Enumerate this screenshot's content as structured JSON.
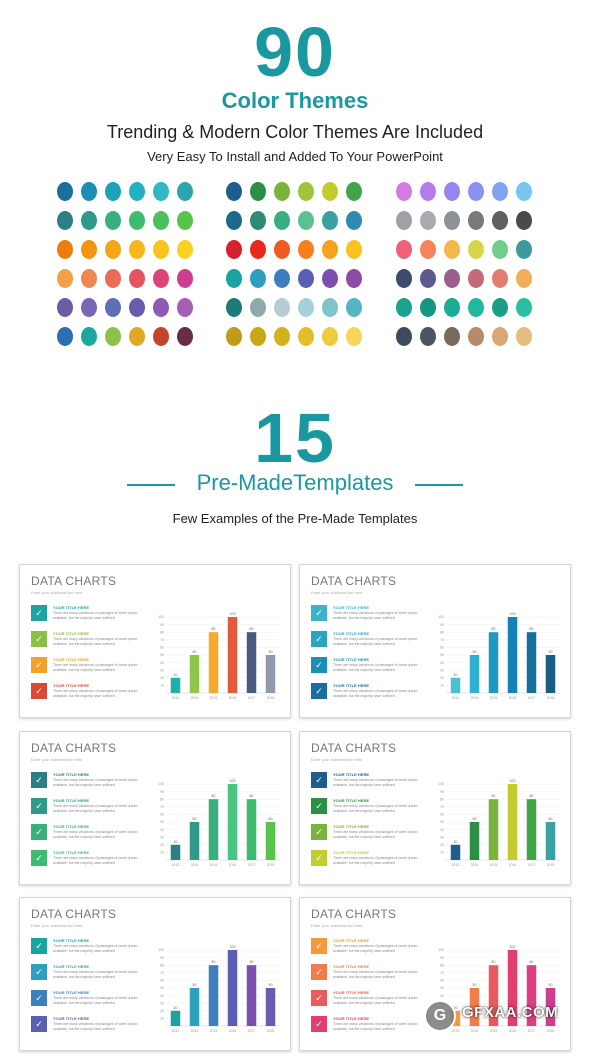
{
  "header": {
    "count": "90",
    "title": "Color Themes",
    "subtitle": "Trending & Modern Color Themes Are Included",
    "tagline": "Very Easy To Install and Added To Your PowerPoint"
  },
  "palettes": [
    [
      [
        "#1b6f9e",
        "#1a8fb4",
        "#1aa2b8",
        "#23b1bf",
        "#2fb8c3",
        "#2aa7ad"
      ],
      [
        "#2c7f84",
        "#2f9a8a",
        "#37b07e",
        "#3dbb6e",
        "#4ac15d",
        "#58c44a"
      ],
      [
        "#f07d0b",
        "#f39412",
        "#f5a618",
        "#f7b61c",
        "#f9c41e",
        "#fbd223"
      ],
      [
        "#f3a046",
        "#f08753",
        "#ec6c5a",
        "#e45463",
        "#dd4477",
        "#cc3f8f"
      ],
      [
        "#6b5ca5",
        "#7b66b5",
        "#5d6fb5",
        "#6a5ab0",
        "#8e5ab8",
        "#a65fb5"
      ],
      [
        "#2a6fb0",
        "#1aa99a",
        "#8ec14a",
        "#e1a827",
        "#c2452b",
        "#6a2d47"
      ]
    ],
    [
      [
        "#1d5e8e",
        "#2d8f45",
        "#7ab33c",
        "#a2c23a",
        "#c2cc2f",
        "#41a447"
      ],
      [
        "#1b6a8c",
        "#2e8c76",
        "#36b07e",
        "#5cc091",
        "#3aa0a2",
        "#2d8bb1"
      ],
      [
        "#d7202f",
        "#e8291d",
        "#f25b1f",
        "#f77f1d",
        "#f9a01c",
        "#fbc21f"
      ],
      [
        "#1aa3a0",
        "#2f9fbf",
        "#3d7ebd",
        "#5a5fb5",
        "#7a4fb0",
        "#8e4aa8"
      ],
      [
        "#1f7a78",
        "#8ea9ab",
        "#b4cdd2",
        "#a7d1d8",
        "#7ec4c9",
        "#55b5c3"
      ],
      [
        "#c09a18",
        "#c8a717",
        "#d2b21d",
        "#e1be2a",
        "#eecb3c",
        "#f6d65a"
      ]
    ],
    [
      [
        "#d27be3",
        "#b57be8",
        "#9a84ee",
        "#8a91f0",
        "#7ea4f2",
        "#77c5f2"
      ],
      [
        "#9ea2a8",
        "#a8acb1",
        "#8d9297",
        "#77797d",
        "#5f6064",
        "#48494c"
      ],
      [
        "#f0607a",
        "#f5845d",
        "#f5b64a",
        "#d7d64a",
        "#6fcf8a",
        "#3d9a9a"
      ],
      [
        "#3d4a6b",
        "#5d5a8e",
        "#9a5f8a",
        "#c36a7b",
        "#e07f6f",
        "#f0b05a"
      ],
      [
        "#1aa38e",
        "#17967f",
        "#19ad93",
        "#20b89e",
        "#1a9e86",
        "#2bbfa2"
      ],
      [
        "#3e4b5d",
        "#4a5463",
        "#7a6a5e",
        "#b98a6a",
        "#d9a677",
        "#e4bd80"
      ]
    ]
  ],
  "templates": {
    "count": "15",
    "title": "Pre-MadeTemplates",
    "subtitle": "Few Examples of the Pre-Made Templates"
  },
  "card_common": {
    "title": "DATA CHARTS",
    "sub": "Enter your subhead line here",
    "item_title": "YOUR TITLE HERE",
    "item_text": "There are many variations of passages of lorem ipsum available, but the majority have suffered",
    "years": [
      "2013",
      "2014",
      "2015",
      "2016",
      "2017",
      "2018"
    ]
  },
  "chart_data": {
    "type": "bar",
    "categories": [
      "2013",
      "2014",
      "2015",
      "2016",
      "2017",
      "2018"
    ],
    "values": [
      20,
      50,
      80,
      100,
      80,
      50
    ],
    "ylim": [
      0,
      100
    ],
    "yticks": [
      10,
      20,
      30,
      40,
      50,
      60,
      70,
      80,
      90,
      100
    ]
  },
  "cards": [
    {
      "icon_colors": [
        "#1fa2a0",
        "#8bbf46",
        "#f3a12b",
        "#d84a35"
      ],
      "title_colors": [
        "#1fa2a0",
        "#8bbf46",
        "#f3a12b",
        "#d84a35"
      ],
      "bar_colors": [
        "#1fb0a8",
        "#8fc54c",
        "#f5a92d",
        "#e55a3c",
        "#4a5a7b",
        "#8f9aaa"
      ]
    },
    {
      "icon_colors": [
        "#3bb3c9",
        "#2aa3c5",
        "#1b8fb6",
        "#1b6f9e"
      ],
      "title_colors": [
        "#3bb3c9",
        "#2aa3c5",
        "#1b8fb6",
        "#1b6f9e"
      ],
      "bar_colors": [
        "#4cc0d1",
        "#32aed0",
        "#1d98c2",
        "#1382b6",
        "#166f9d",
        "#1b5c82"
      ]
    },
    {
      "icon_colors": [
        "#2c7f84",
        "#2f9a8a",
        "#37b07e",
        "#3dbb6e"
      ],
      "title_colors": [
        "#2c7f84",
        "#2f9a8a",
        "#37b07e",
        "#3dbb6e"
      ],
      "bar_colors": [
        "#2c7f84",
        "#2f9a8a",
        "#37b07e",
        "#4ac581",
        "#3dbb6e",
        "#58c44a"
      ]
    },
    {
      "icon_colors": [
        "#1d5e8e",
        "#2d8f45",
        "#7ab33c",
        "#c2cc2f"
      ],
      "title_colors": [
        "#1d5e8e",
        "#2d8f45",
        "#7ab33c",
        "#c2cc2f"
      ],
      "bar_colors": [
        "#1d5e8e",
        "#2d8f45",
        "#7ab33c",
        "#c2cc2f",
        "#41a447",
        "#3aa0a2"
      ]
    },
    {
      "icon_colors": [
        "#1aa3a0",
        "#2f9fbf",
        "#3d7ebd",
        "#5a5fb5"
      ],
      "title_colors": [
        "#1aa3a0",
        "#2f9fbf",
        "#3d7ebd",
        "#5a5fb5"
      ],
      "bar_colors": [
        "#1aa3a0",
        "#2f9fbf",
        "#3d7ebd",
        "#5a5fb5",
        "#7a4fb0",
        "#6a5ab0"
      ]
    },
    {
      "icon_colors": [
        "#f39a3c",
        "#f07d4b",
        "#ea5b5e",
        "#e23e6e"
      ],
      "title_colors": [
        "#f39a3c",
        "#f07d4b",
        "#ea5b5e",
        "#e23e6e"
      ],
      "bar_colors": [
        "#f39a3c",
        "#f07d4b",
        "#ea5b5e",
        "#e23e6e",
        "#dd3f84",
        "#cc3f8f"
      ]
    }
  ],
  "watermark": {
    "text": "GFXAA.COM",
    "logo": "G"
  }
}
